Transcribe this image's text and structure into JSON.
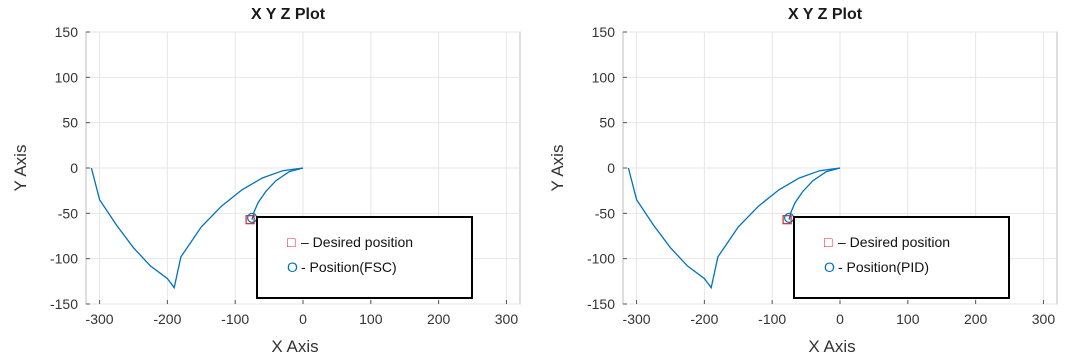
{
  "colors": {
    "trajectory": "#0072bd",
    "desired_marker": "#d62728",
    "position_marker": "#0072bd",
    "grid": "#e6e6e6"
  },
  "chart_data": [
    {
      "type": "line",
      "title": "X Y Z Plot",
      "xlabel": "X Axis",
      "ylabel": "Y Axis",
      "xlim": [
        -320,
        320
      ],
      "ylim": [
        -150,
        150
      ],
      "xticks": [
        -300,
        -200,
        -100,
        0,
        100,
        200,
        300
      ],
      "yticks": [
        150,
        100,
        50,
        0,
        -50,
        -100,
        -150
      ],
      "grid": true,
      "legend_position": "bottom-right",
      "series": [
        {
          "style": "line",
          "x": [
            0,
            -30,
            -60,
            -90,
            -120,
            -150,
            -180,
            -190,
            -200,
            -225,
            -250,
            -275,
            -300,
            -312
          ],
          "y": [
            0,
            -3,
            -11,
            -24,
            -42,
            -65,
            -98,
            -132,
            -122,
            -108,
            -88,
            -63,
            -35,
            0
          ]
        },
        {
          "style": "line",
          "x": [
            0,
            -20,
            -40,
            -55,
            -66,
            -72,
            -75
          ],
          "y": [
            0,
            -4,
            -14,
            -26,
            -38,
            -48,
            -57
          ]
        }
      ],
      "markers": [
        {
          "shape": "square",
          "x": -78,
          "y": -57,
          "label": "– Desired position",
          "symbol": "□"
        },
        {
          "shape": "circle",
          "x": -75,
          "y": -55,
          "label": "- Position(FSC)",
          "symbol": "O"
        }
      ]
    },
    {
      "type": "line",
      "title": "X Y Z Plot",
      "xlabel": "X Axis",
      "ylabel": "Y Axis",
      "xlim": [
        -320,
        320
      ],
      "ylim": [
        -150,
        150
      ],
      "xticks": [
        -300,
        -200,
        -100,
        0,
        100,
        200,
        300
      ],
      "yticks": [
        150,
        100,
        50,
        0,
        -50,
        -100,
        -150
      ],
      "grid": true,
      "legend_position": "bottom-right",
      "series": [
        {
          "style": "line",
          "x": [
            0,
            -30,
            -60,
            -90,
            -120,
            -150,
            -180,
            -190,
            -200,
            -225,
            -250,
            -275,
            -300,
            -312
          ],
          "y": [
            0,
            -3,
            -11,
            -24,
            -42,
            -65,
            -98,
            -132,
            -122,
            -108,
            -88,
            -63,
            -35,
            0
          ]
        },
        {
          "style": "line",
          "x": [
            0,
            -20,
            -40,
            -55,
            -66,
            -72,
            -75
          ],
          "y": [
            0,
            -4,
            -14,
            -26,
            -38,
            -48,
            -57
          ]
        }
      ],
      "markers": [
        {
          "shape": "square",
          "x": -78,
          "y": -57,
          "label": "– Desired position",
          "symbol": "□"
        },
        {
          "shape": "circle",
          "x": -75,
          "y": -55,
          "label": "- Position(PID)",
          "symbol": "O"
        }
      ]
    }
  ]
}
